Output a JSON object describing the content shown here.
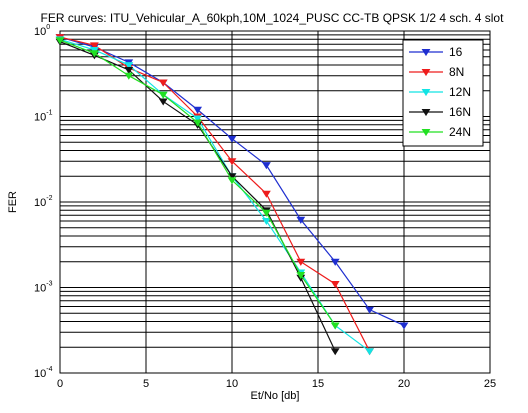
{
  "chart_data": {
    "type": "line",
    "title": "FER curves: ITU_Vehicular_A_60kph,10M_1024_PUSC CC-TB QPSK 1/2 4 sch. 4 slot",
    "xlabel": "Et/No [db]",
    "ylabel": "FER",
    "xlim": [
      0,
      25
    ],
    "ylim": [
      0.0001,
      1
    ],
    "yscale": "log",
    "grid": true,
    "legend_position": "top-right",
    "x_ticks": [
      "0",
      "5",
      "10",
      "15",
      "20",
      "25"
    ],
    "y_ticks": [
      {
        "base": "10",
        "exp": "-4"
      },
      {
        "base": "10",
        "exp": "-3"
      },
      {
        "base": "10",
        "exp": "-2"
      },
      {
        "base": "10",
        "exp": "-1"
      },
      {
        "base": "10",
        "exp": "0"
      }
    ],
    "series": [
      {
        "name": "16",
        "color": "#1f2fd0",
        "x": [
          0,
          2,
          4,
          6,
          8,
          10,
          12,
          14,
          16,
          18,
          20
        ],
        "y": [
          0.85,
          0.65,
          0.43,
          0.25,
          0.12,
          0.055,
          0.027,
          0.0062,
          0.002,
          0.00055,
          0.00036
        ]
      },
      {
        "name": "8N",
        "color": "#ee1c1c",
        "x": [
          0,
          2,
          4,
          6,
          8,
          10,
          12,
          14,
          16,
          18
        ],
        "y": [
          0.85,
          0.68,
          0.37,
          0.25,
          0.1,
          0.03,
          0.0125,
          0.002,
          0.0011,
          0.00018
        ]
      },
      {
        "name": "12N",
        "color": "#12e4e4",
        "x": [
          0,
          2,
          4,
          6,
          8,
          10,
          12,
          14,
          16,
          18
        ],
        "y": [
          0.8,
          0.6,
          0.4,
          0.18,
          0.095,
          0.02,
          0.006,
          0.0015,
          0.00036,
          0.00018
        ]
      },
      {
        "name": "16N",
        "color": "#111111",
        "x": [
          0,
          2,
          4,
          6,
          8,
          10,
          12,
          14,
          16
        ],
        "y": [
          0.75,
          0.52,
          0.35,
          0.15,
          0.08,
          0.02,
          0.008,
          0.0013,
          0.00018
        ]
      },
      {
        "name": "24N",
        "color": "#22e022",
        "x": [
          0,
          2,
          4,
          6,
          8,
          10,
          12,
          14,
          16
        ],
        "y": [
          0.78,
          0.55,
          0.3,
          0.18,
          0.085,
          0.018,
          0.0075,
          0.0014,
          0.00036
        ]
      }
    ]
  }
}
